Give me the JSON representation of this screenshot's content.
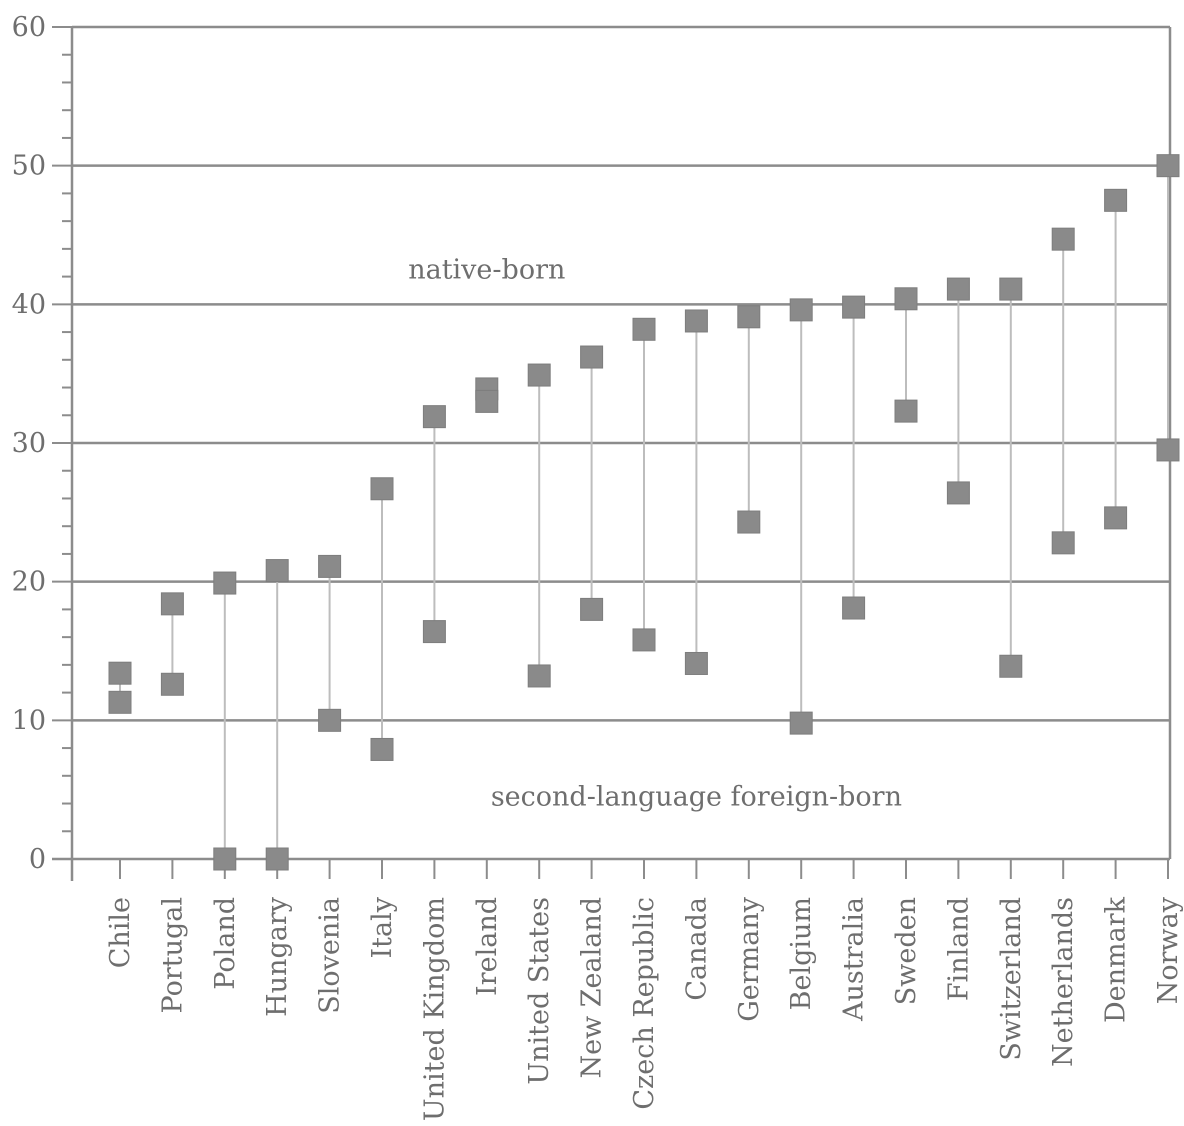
{
  "chart_data": {
    "type": "scatter",
    "title": "",
    "xlabel": "",
    "ylabel": "",
    "ylim": [
      0,
      60
    ],
    "y_major_ticks": [
      0,
      10,
      20,
      30,
      40,
      50,
      60
    ],
    "y_minor_step": 2,
    "grid": "horizontal lines at 10, 20, 30, 40, 50",
    "legend": "none",
    "marker": "square",
    "colors": {
      "marker": "#8a8a8a",
      "line": "#8c8c8c",
      "connector": "#bdbdbd",
      "text": "#6e6e6e"
    },
    "annotations": [
      {
        "text": "native-born",
        "x": "Ireland",
        "y": 42.5
      },
      {
        "text": "second-language foreign-born",
        "x": "Canada",
        "y": 4.5
      }
    ],
    "categories": [
      "Chile",
      "Portugal",
      "Poland",
      "Hungary",
      "Slovenia",
      "Italy",
      "United Kingdom",
      "Ireland",
      "United States",
      "New Zealand",
      "Czech Republic",
      "Canada",
      "Germany",
      "Belgium",
      "Australia",
      "Sweden",
      "Finland",
      "Switzerland",
      "Netherlands",
      "Denmark",
      "Norway"
    ],
    "series": [
      {
        "name": "native-born",
        "values": [
          13.4,
          18.4,
          19.9,
          20.8,
          21.1,
          26.7,
          31.9,
          33.9,
          34.9,
          36.2,
          38.2,
          38.8,
          39.1,
          39.6,
          39.8,
          40.4,
          41.1,
          41.1,
          44.7,
          47.5,
          50.0
        ]
      },
      {
        "name": "second-language foreign-born",
        "values": [
          11.3,
          12.6,
          0.0,
          0.0,
          10.0,
          7.9,
          16.4,
          33.0,
          13.2,
          18.0,
          15.8,
          14.1,
          24.3,
          9.8,
          18.1,
          32.3,
          26.4,
          13.9,
          22.8,
          24.6,
          29.5
        ]
      }
    ]
  }
}
